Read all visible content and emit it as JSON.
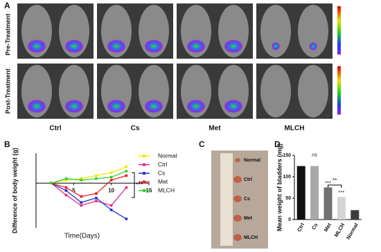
{
  "panel_a": {
    "label": "A",
    "rows": [
      "Pre-Treatment",
      "Post-Treatment"
    ],
    "columns": [
      "Ctrl",
      "Cs",
      "Met",
      "MLCH"
    ]
  },
  "panel_c": {
    "label": "C",
    "labels": [
      "Normal",
      "Ctrl",
      "Cs",
      "Met",
      "MLCH"
    ]
  },
  "chart_data": [
    {
      "type": "line",
      "panel": "B",
      "ylabel": "Difference of body weight (g)",
      "xlabel": "Time(Days)",
      "x": [
        2,
        4,
        6,
        8,
        10,
        12
      ],
      "xlim": [
        0,
        15
      ],
      "xticks": [
        5,
        10,
        15
      ],
      "ylim": [
        -3,
        2
      ],
      "series": [
        {
          "name": "Normal",
          "color": "#f2e600",
          "values": [
            0,
            0.2,
            0.3,
            0.5,
            0.7,
            1.1
          ]
        },
        {
          "name": "Ctrl",
          "color": "#e0288c",
          "values": [
            0,
            -0.8,
            -1.5,
            -1.2,
            -1.5,
            -0.3
          ]
        },
        {
          "name": "Cs",
          "color": "#2030d0",
          "values": [
            0,
            -0.5,
            -1.3,
            -1.0,
            -1.8,
            -2.4
          ]
        },
        {
          "name": "Met",
          "color": "#e82020",
          "values": [
            0,
            -0.3,
            -0.9,
            -0.7,
            0.2,
            0.5
          ]
        },
        {
          "name": "MLCH",
          "color": "#30d030",
          "values": [
            0,
            0.3,
            0.2,
            0.3,
            0.4,
            0.8
          ]
        }
      ],
      "significance": "***"
    },
    {
      "type": "bar",
      "panel": "D",
      "ylabel": "Mean weight of bladders (mg)",
      "categories": [
        "Ctrl",
        "Cs",
        "Met",
        "MLCH",
        "Normal"
      ],
      "values": [
        125,
        125,
        75,
        53,
        22
      ],
      "colors": [
        "#111111",
        "#a8a8a8",
        "#707070",
        "#d4d4d4",
        "#3c3c3c"
      ],
      "ylim": [
        0,
        150
      ],
      "yticks": [
        0,
        50,
        100,
        150
      ],
      "significance": [
        null,
        "ns",
        "***",
        "***",
        null
      ],
      "comparison_label": "**"
    }
  ]
}
